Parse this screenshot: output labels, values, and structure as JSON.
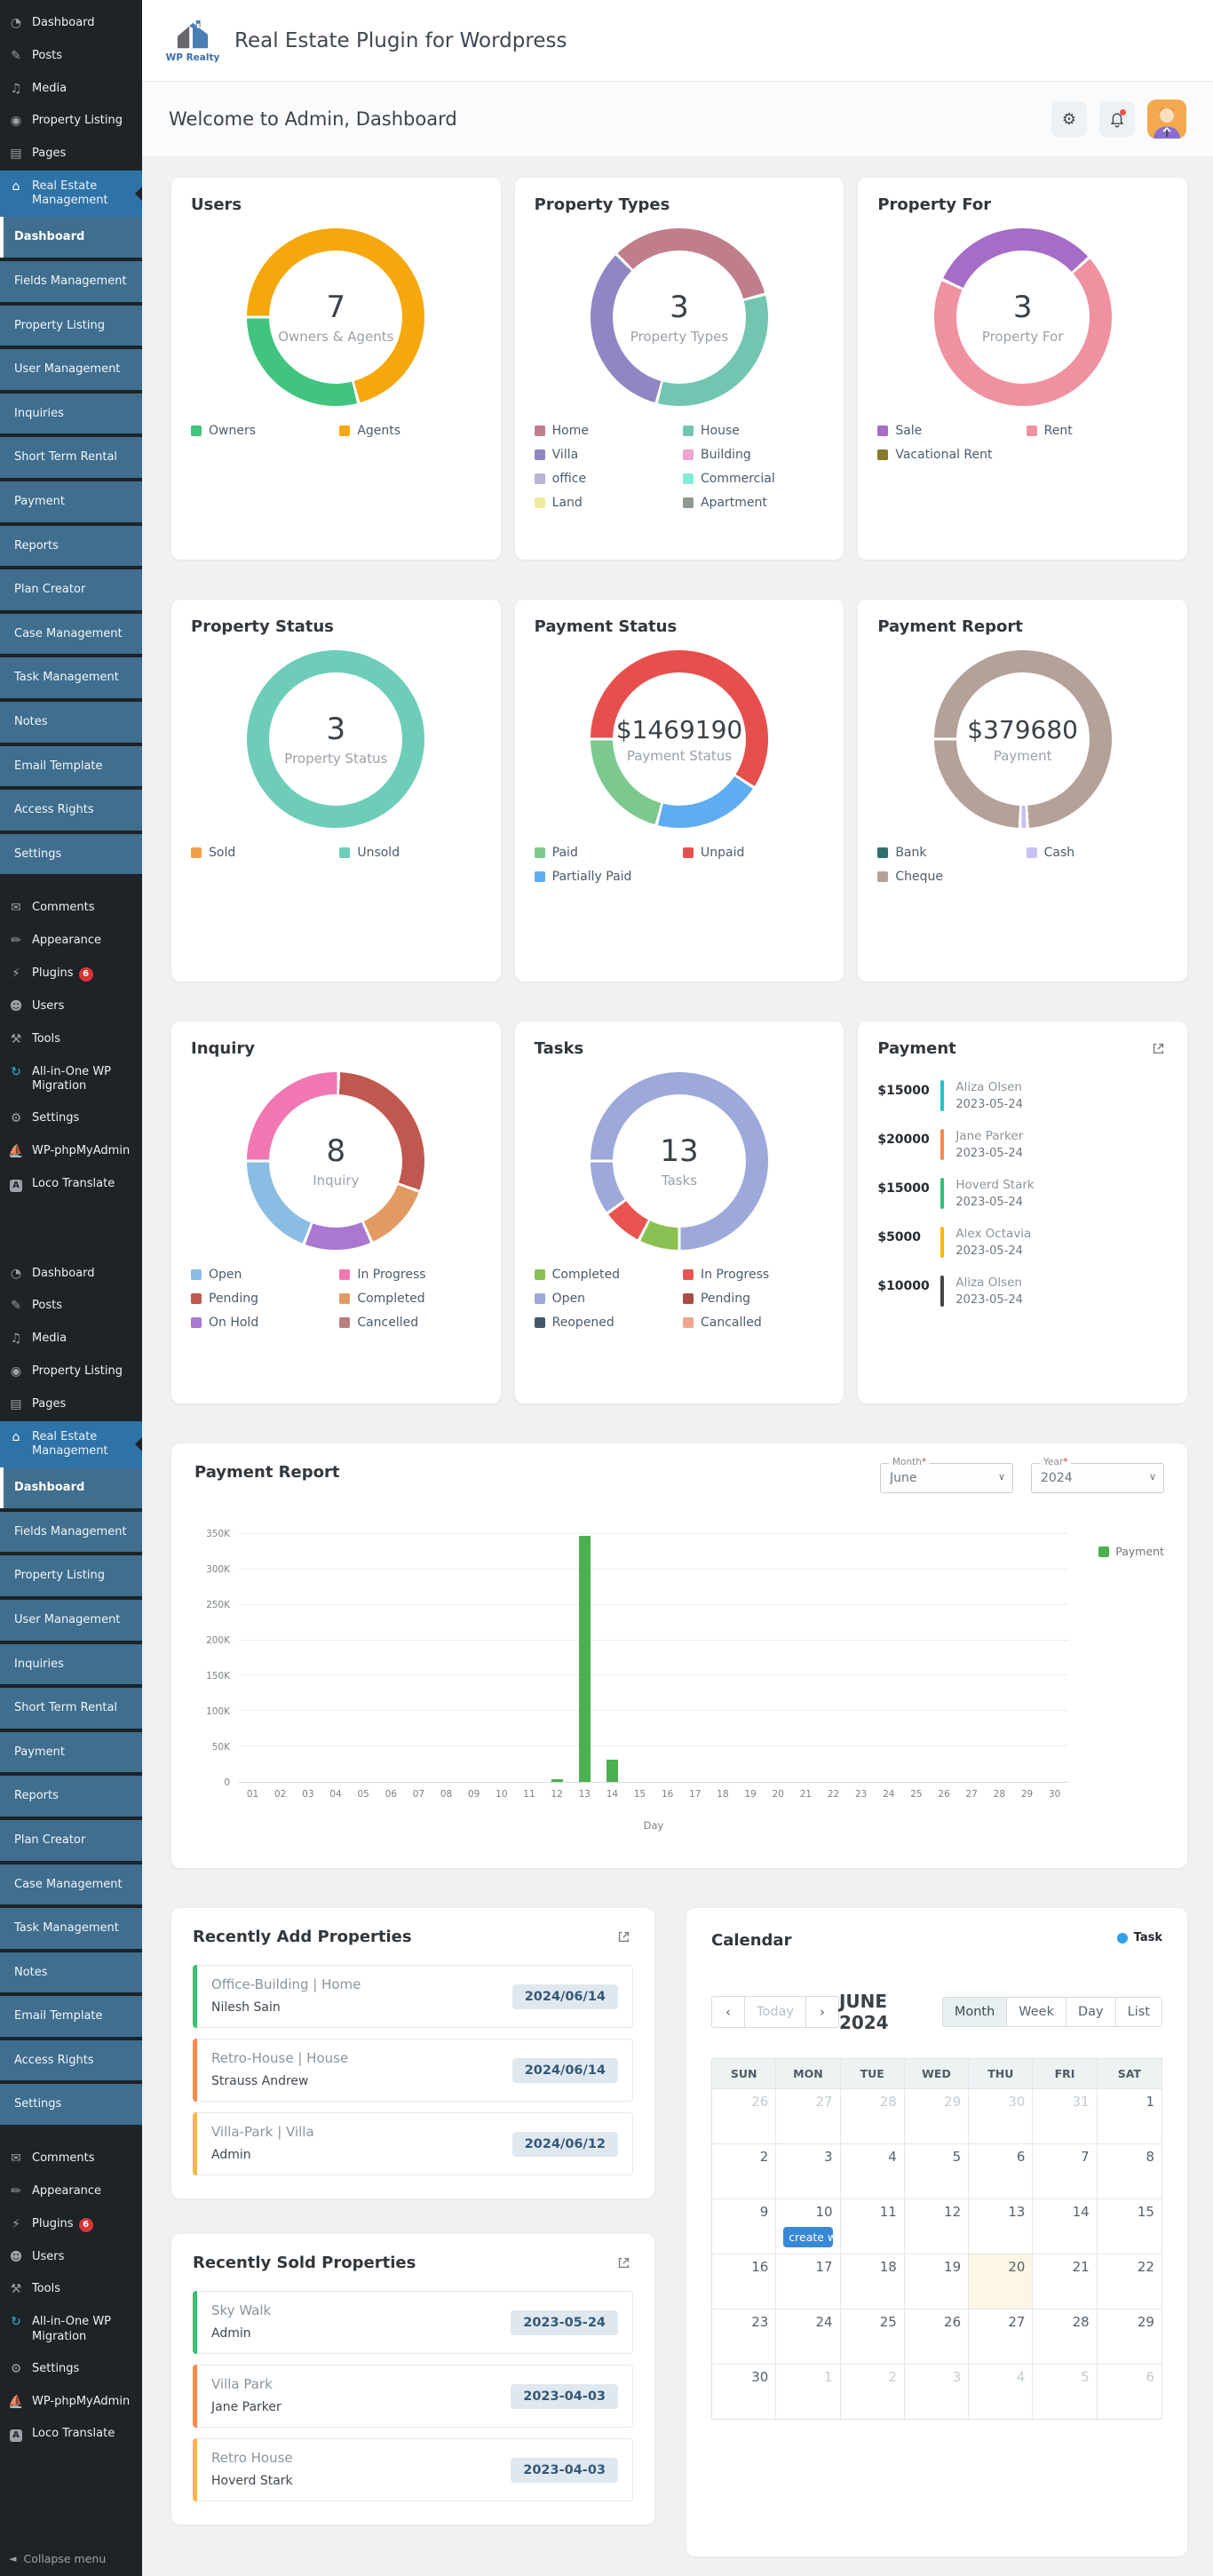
{
  "sidebar": {
    "top_items": [
      {
        "label": "Dashboard",
        "icon": "dashboard-icon",
        "glyph": "◔"
      },
      {
        "label": "Posts",
        "icon": "posts-icon",
        "glyph": "✎"
      },
      {
        "label": "Media",
        "icon": "media-icon",
        "glyph": "♫"
      },
      {
        "label": "Property Listing",
        "icon": "location-pin-icon",
        "glyph": "◉"
      },
      {
        "label": "Pages",
        "icon": "pages-icon",
        "glyph": "▤"
      }
    ],
    "active_item": {
      "label": "Real Estate Management",
      "icon": "house-icon",
      "glyph": "⌂"
    },
    "submenu": {
      "active": "Dashboard",
      "items": [
        "Dashboard",
        "Fields Management",
        "Property Listing",
        "User Management",
        "Inquiries",
        "Short Term Rental",
        "Payment",
        "Reports",
        "Plan Creator",
        "Case Management",
        "Task Management",
        "Notes",
        "Email Template",
        "Access Rights",
        "Settings"
      ]
    },
    "bottom_items": [
      {
        "label": "Comments",
        "icon": "comments-icon",
        "glyph": "✉",
        "gap": true
      },
      {
        "label": "Appearance",
        "icon": "appearance-icon",
        "glyph": "✏"
      },
      {
        "label": "Plugins",
        "icon": "plugins-icon",
        "glyph": "⚡",
        "badge": "6"
      },
      {
        "label": "Users",
        "icon": "users-icon",
        "glyph": "☻"
      },
      {
        "label": "Tools",
        "icon": "tools-icon",
        "glyph": "⚒"
      },
      {
        "label": "All-in-One WP Migration",
        "icon": "migration-icon",
        "glyph": "↻",
        "glyph_color": "#36b0d9"
      },
      {
        "label": "Settings",
        "icon": "settings-icon",
        "glyph": "⚙"
      },
      {
        "label": "WP-phpMyAdmin",
        "icon": "phpmyadmin-sailboat-icon",
        "glyph": "⛵"
      },
      {
        "label": "Loco Translate",
        "icon": "loco-translate-icon",
        "glyph": "A",
        "loco": true
      }
    ],
    "collapse_label": "Collapse menu"
  },
  "header": {
    "logo_text": "WP Realty",
    "title": "Real Estate Plugin for Wordpress"
  },
  "welcome": {
    "title": "Welcome to Admin, Dashboard"
  },
  "donut_cards": [
    {
      "key": "users",
      "title": "Users",
      "center_value": "7",
      "center_label": "Owners & Agents",
      "values": {
        "Owners": 2,
        "Agents": 5
      },
      "arc_from": -90,
      "segments": [
        {
          "color": "#f6a70b",
          "deg": 255
        },
        {
          "color": "#41c47e",
          "deg": 105
        }
      ],
      "legend": [
        {
          "label": "Owners",
          "color": "#41c47e"
        },
        {
          "label": "Agents",
          "color": "#f6a70b"
        }
      ]
    },
    {
      "key": "property_types",
      "title": "Property Types",
      "center_value": "3",
      "center_label": "Property Types",
      "values": {
        "Home": 1,
        "House": 1,
        "Villa": 1
      },
      "arc_from": -45,
      "segments": [
        {
          "color": "#c07e8c",
          "deg": 120
        },
        {
          "color": "#72c6b1",
          "deg": 120
        },
        {
          "color": "#8e87c3",
          "deg": 120
        }
      ],
      "legend": [
        {
          "label": "Home",
          "color": "#c07e8c"
        },
        {
          "label": "Villa",
          "color": "#8e87c3"
        },
        {
          "label": "office",
          "color": "#b9b3da"
        },
        {
          "label": "Land",
          "color": "#eeeb9d"
        },
        {
          "label": "House",
          "color": "#72c6b1"
        },
        {
          "label": "Building",
          "color": "#f0a2d1"
        },
        {
          "label": "Commercial",
          "color": "#83eed7"
        },
        {
          "label": "Apartment",
          "color": "#8f998f"
        }
      ]
    },
    {
      "key": "property_for",
      "title": "Property For",
      "center_value": "3",
      "center_label": "Property For",
      "values": {
        "Sale": 1,
        "Rent": 2
      },
      "arc_from": -65,
      "segments": [
        {
          "color": "#a56cc8",
          "deg": 113
        },
        {
          "color": "#f0919f",
          "deg": 247
        }
      ],
      "legend": [
        {
          "label": "Sale",
          "color": "#a56cc8"
        },
        {
          "label": "Vacational Rent",
          "color": "#877c25"
        },
        {
          "label": "Rent",
          "color": "#f0919f"
        }
      ]
    },
    {
      "key": "property_status",
      "title": "Property Status",
      "center_value": "3",
      "center_label": "Property Status",
      "values": {
        "Sold": 0,
        "Unsold": 3
      },
      "arc_from": -90,
      "segments": [
        {
          "color": "#6ecdb8",
          "deg": 360
        }
      ],
      "legend": [
        {
          "label": "Sold",
          "color": "#f0a04a"
        },
        {
          "label": "Unsold",
          "color": "#6ecdb8"
        }
      ]
    },
    {
      "key": "payment_status",
      "title": "Payment Status",
      "center_value": "$1469190",
      "center_label": "Payment Status",
      "arc_from": -90,
      "segments": [
        {
          "color": "#e74f4d",
          "deg": 213
        },
        {
          "color": "#60acf0",
          "deg": 72
        },
        {
          "color": "#7cc98f",
          "deg": 75
        }
      ],
      "legend": [
        {
          "label": "Paid",
          "color": "#7cc98f"
        },
        {
          "label": "Partially Paid",
          "color": "#60acf0"
        },
        {
          "label": "Unpaid",
          "color": "#e74f4d"
        }
      ]
    },
    {
      "key": "payment_report",
      "title": "Payment Report",
      "center_value": "$379680",
      "center_label": "Payment",
      "arc_from": -90,
      "segments": [
        {
          "color": "#b4a198",
          "deg": 267
        },
        {
          "color": "#c4c2f2",
          "deg": 5
        },
        {
          "color": "#b4a198",
          "deg": 88
        }
      ],
      "legend": [
        {
          "label": "Bank",
          "color": "#2f6f6d"
        },
        {
          "label": "Cheque",
          "color": "#b4a198"
        },
        {
          "label": "Cash",
          "color": "#c4c2f2"
        }
      ]
    },
    {
      "key": "inquiry",
      "title": "Inquiry",
      "center_value": "8",
      "center_label": "Inquiry",
      "values": {
        "Open": 2,
        "In Progress": 2,
        "Pending": 2,
        "Completed": 1,
        "On Hold": 1,
        "Cancelled": 0
      },
      "arc_from": -90,
      "segments": [
        {
          "color": "#f177b3",
          "deg": 92
        },
        {
          "color": "#c1584f",
          "deg": 108
        },
        {
          "color": "#e29a62",
          "deg": 46
        },
        {
          "color": "#a978d0",
          "deg": 45
        },
        {
          "color": "#8abde4",
          "deg": 69
        }
      ],
      "legend": [
        {
          "label": "Open",
          "color": "#8abde4"
        },
        {
          "label": "Pending",
          "color": "#c1584f"
        },
        {
          "label": "On Hold",
          "color": "#a978d0"
        },
        {
          "label": "In Progress",
          "color": "#f177b3"
        },
        {
          "label": "Completed",
          "color": "#e29a62"
        },
        {
          "label": "Cancelled",
          "color": "#bb7d7d"
        }
      ]
    },
    {
      "key": "tasks",
      "title": "Tasks",
      "center_value": "13",
      "center_label": "Tasks",
      "values": {
        "Open": 11,
        "Completed": 1,
        "In Progress": 1
      },
      "arc_from": -90,
      "segments": [
        {
          "color": "#9da9da",
          "deg": 270
        },
        {
          "color": "#8bc152",
          "deg": 27
        },
        {
          "color": "#e95450",
          "deg": 27
        },
        {
          "color": "#9da9da",
          "deg": 36
        }
      ],
      "legend": [
        {
          "label": "Completed",
          "color": "#8bc152"
        },
        {
          "label": "Open",
          "color": "#9da9da"
        },
        {
          "label": "Reopened",
          "color": "#45586a"
        },
        {
          "label": "In Progress",
          "color": "#e95450"
        },
        {
          "label": "Pending",
          "color": "#a94e46"
        },
        {
          "label": "Cancalled",
          "color": "#f2a68d"
        }
      ]
    }
  ],
  "payment_list": {
    "title": "Payment",
    "entries": [
      {
        "amount": "$15000",
        "name": "Aliza Olsen",
        "date": "2023-05-24",
        "color": "#23c3c3"
      },
      {
        "amount": "$20000",
        "name": "Jane Parker",
        "date": "2023-05-24",
        "color": "#f9884c"
      },
      {
        "amount": "$15000",
        "name": "Hoverd Stark",
        "date": "2023-05-24",
        "color": "#2fc077"
      },
      {
        "amount": "$5000",
        "name": "Alex Octavia",
        "date": "2023-05-24",
        "color": "#fcb800"
      },
      {
        "amount": "$10000",
        "name": "Aliza Olsen",
        "date": "2023-05-24",
        "color": "#454545"
      }
    ]
  },
  "chart_data": {
    "type": "bar",
    "title": "Payment Report",
    "month_label": "Month*",
    "month_value": "June",
    "year_label": "Year*",
    "year_value": "2024",
    "legend": [
      {
        "label": "Payment",
        "color": "#4caf50"
      }
    ],
    "x": [
      "01",
      "02",
      "03",
      "04",
      "05",
      "06",
      "07",
      "08",
      "09",
      "10",
      "11",
      "12",
      "13",
      "14",
      "15",
      "16",
      "17",
      "18",
      "19",
      "20",
      "21",
      "22",
      "23",
      "24",
      "25",
      "26",
      "27",
      "28",
      "29",
      "30"
    ],
    "values": [
      0,
      0,
      0,
      0,
      0,
      0,
      0,
      0,
      0,
      0,
      0,
      4000,
      348000,
      32000,
      0,
      0,
      0,
      0,
      0,
      0,
      0,
      0,
      0,
      0,
      0,
      0,
      0,
      0,
      0,
      0
    ],
    "xlabel": "Day",
    "y_ticks": [
      "0",
      "50K",
      "100K",
      "150K",
      "200K",
      "250K",
      "300K",
      "350K"
    ],
    "ylim": [
      0,
      350000
    ]
  },
  "recently_added": {
    "title": "Recently Add Properties",
    "rows": [
      {
        "title": "Office-Building | Home",
        "name": "Nilesh Sain",
        "date": "2024/06/14",
        "color": "#3dbf73"
      },
      {
        "title": "Retro-House | House",
        "name": "Strauss Andrew",
        "date": "2024/06/14",
        "color": "#f9884c"
      },
      {
        "title": "Villa-Park | Villa",
        "name": "Admin",
        "date": "2024/06/12",
        "color": "#f7b844"
      }
    ]
  },
  "recently_sold": {
    "title": "Recently Sold Properties",
    "rows": [
      {
        "title": "Sky Walk",
        "name": "Admin",
        "date": "2023-05-24",
        "color": "#3dbf73"
      },
      {
        "title": "Villa Park",
        "name": "Jane Parker",
        "date": "2023-04-03",
        "color": "#f9884c"
      },
      {
        "title": "Retro House",
        "name": "Hoverd Stark",
        "date": "2023-04-03",
        "color": "#f7b844"
      }
    ]
  },
  "calendar": {
    "title": "Calendar",
    "legend_label": "Task",
    "legend_color": "#2f9ff0",
    "today_label": "Today",
    "month_title": "JUNE 2024",
    "views": [
      "Month",
      "Week",
      "Day",
      "List"
    ],
    "active_view": "Month",
    "weekdays": [
      "SUN",
      "MON",
      "TUE",
      "WED",
      "THU",
      "FRI",
      "SAT"
    ],
    "event_color": "#3788d8",
    "weeks": [
      [
        {
          "d": "26",
          "out": true
        },
        {
          "d": "27",
          "out": true
        },
        {
          "d": "28",
          "out": true
        },
        {
          "d": "29",
          "out": true
        },
        {
          "d": "30",
          "out": true
        },
        {
          "d": "31",
          "out": true
        },
        {
          "d": "1"
        }
      ],
      [
        {
          "d": "2"
        },
        {
          "d": "3"
        },
        {
          "d": "4"
        },
        {
          "d": "5"
        },
        {
          "d": "6"
        },
        {
          "d": "7"
        },
        {
          "d": "8"
        }
      ],
      [
        {
          "d": "9"
        },
        {
          "d": "10",
          "event": "create w"
        },
        {
          "d": "11"
        },
        {
          "d": "12"
        },
        {
          "d": "13"
        },
        {
          "d": "14"
        },
        {
          "d": "15"
        }
      ],
      [
        {
          "d": "16"
        },
        {
          "d": "17"
        },
        {
          "d": "18"
        },
        {
          "d": "19"
        },
        {
          "d": "20",
          "today": true
        },
        {
          "d": "21"
        },
        {
          "d": "22"
        }
      ],
      [
        {
          "d": "23"
        },
        {
          "d": "24"
        },
        {
          "d": "25"
        },
        {
          "d": "26"
        },
        {
          "d": "27"
        },
        {
          "d": "28"
        },
        {
          "d": "29"
        }
      ],
      [
        {
          "d": "30"
        },
        {
          "d": "1",
          "out": true
        },
        {
          "d": "2",
          "out": true
        },
        {
          "d": "3",
          "out": true
        },
        {
          "d": "4",
          "out": true
        },
        {
          "d": "5",
          "out": true
        },
        {
          "d": "6",
          "out": true
        }
      ]
    ]
  }
}
